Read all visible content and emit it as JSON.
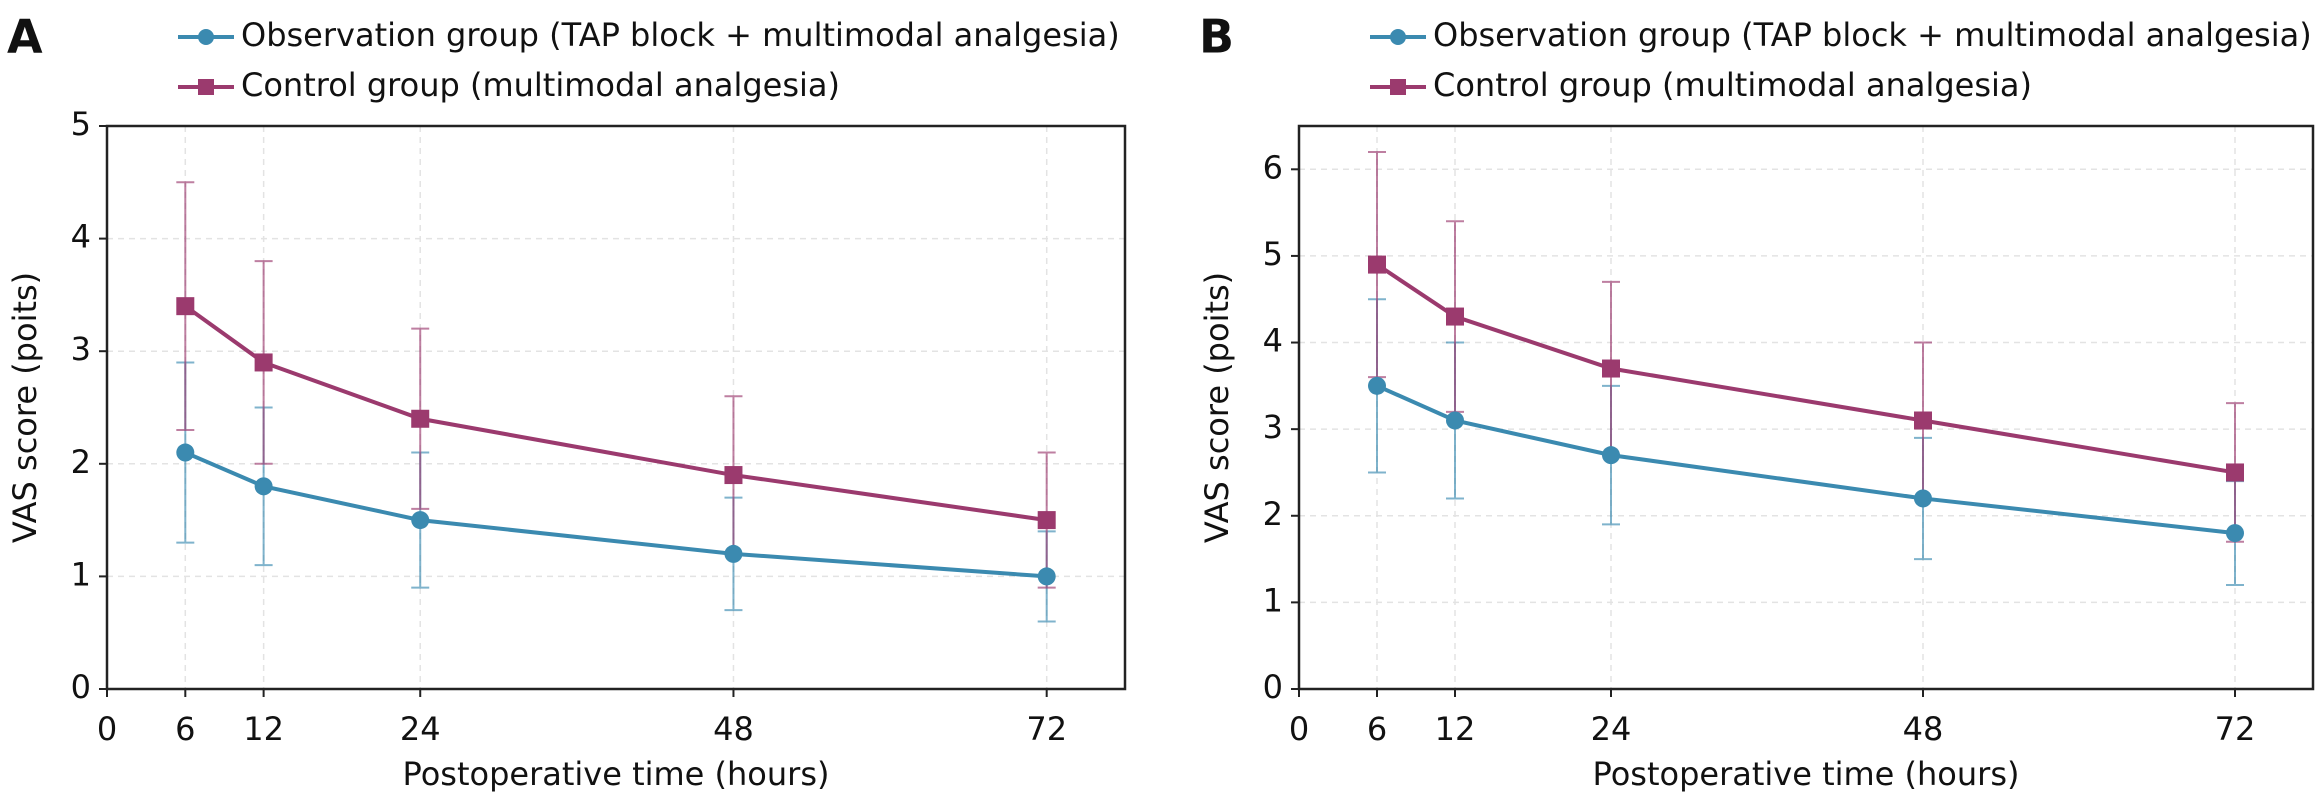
{
  "chart_data": [
    {
      "type": "line",
      "panel": "A",
      "x_label": "Postoperative time (hours)",
      "y_label": "VAS score (poits)",
      "x": [
        6,
        12,
        24,
        48,
        72
      ],
      "series": [
        {
          "name": "Observation group (TAP block + multimodal analgesia)",
          "color": "#3b8ab0",
          "marker": "circle",
          "values": [
            2.1,
            1.8,
            1.5,
            1.2,
            1.0
          ],
          "errors": [
            0.8,
            0.7,
            0.6,
            0.5,
            0.4
          ]
        },
        {
          "name": "Control group (multimodal analgesia)",
          "color": "#9b3a6e",
          "marker": "square",
          "values": [
            3.4,
            2.9,
            2.4,
            1.9,
            1.5
          ],
          "errors": [
            1.1,
            0.9,
            0.8,
            0.7,
            0.6
          ]
        }
      ],
      "xlim": [
        0,
        78
      ],
      "xticks": [
        0,
        6,
        12,
        24,
        48,
        72
      ],
      "ylim": [
        0,
        5
      ],
      "yticks": [
        0,
        1,
        2,
        3,
        4,
        5
      ],
      "grid": true,
      "legend": "top"
    },
    {
      "type": "line",
      "panel": "B",
      "x_label": "Postoperative time (hours)",
      "y_label": "VAS score (poits)",
      "x": [
        6,
        12,
        24,
        48,
        72
      ],
      "series": [
        {
          "name": "Observation group (TAP block + multimodal analgesia)",
          "color": "#3b8ab0",
          "marker": "circle",
          "values": [
            3.5,
            3.1,
            2.7,
            2.2,
            1.8
          ],
          "errors": [
            1.0,
            0.9,
            0.8,
            0.7,
            0.6
          ]
        },
        {
          "name": "Control group (multimodal analgesia)",
          "color": "#9b3a6e",
          "marker": "square",
          "values": [
            4.9,
            4.3,
            3.7,
            3.1,
            2.5
          ],
          "errors": [
            1.3,
            1.1,
            1.0,
            0.9,
            0.8
          ]
        }
      ],
      "xlim": [
        0,
        78
      ],
      "xticks": [
        0,
        6,
        12,
        24,
        48,
        72
      ],
      "ylim": [
        0,
        6.5
      ],
      "yticks": [
        0,
        1,
        2,
        3,
        4,
        5,
        6
      ],
      "grid": true,
      "legend": "top"
    }
  ]
}
